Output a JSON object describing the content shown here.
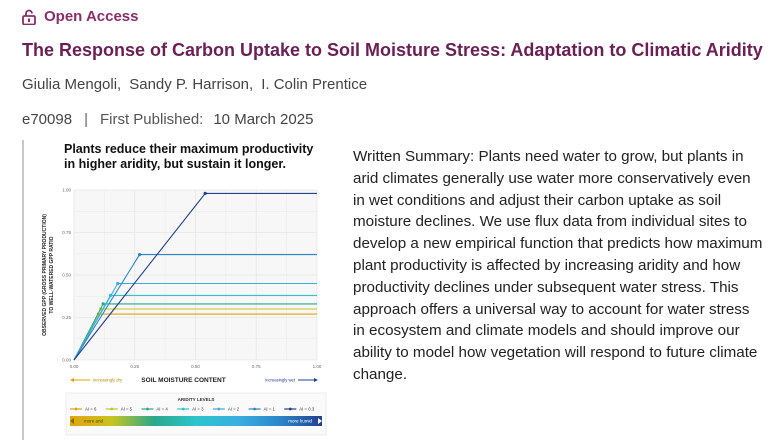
{
  "header": {
    "open_access_label": "Open Access",
    "open_access_icon": "unlock-icon",
    "title": "The Response of Carbon Uptake to Soil Moisture Stress: Adaptation to Climatic Aridity",
    "authors": [
      "Giulia Mengoli",
      "Sandy P. Harrison",
      "I. Colin Prentice"
    ],
    "article_id": "e70098",
    "first_published_label": "First Published:",
    "first_published_date": "10 March 2025"
  },
  "summary": {
    "text": "Written Summary: Plants need water to grow, but plants in arid climates generally use water more conservatively even in wet conditions and adjust their carbon uptake as soil moisture declines. We use flux data from individual sites to develop a new empirical function that predicts how maximum plant productivity is affected by increasing aridity and how productivity declines under subsequent water stress. This approach offers a universal way to account for water stress in ecosystem and climate models and should improve our ability to model how vegetation will respond to future climate change."
  },
  "colors": {
    "title": "#6b1f55",
    "open_access": "#8a2e6a"
  },
  "chart_data": {
    "type": "line",
    "title": "Plants reduce their maximum productivity in higher aridity, but sustain it longer.",
    "xlabel": "SOIL MOISTURE CONTENT",
    "ylabel": "OBSERVED GPP (GROSS PRIMARY PRODUCTION) TO WELL-WATERED GPP RATIO",
    "xlim": [
      0,
      1
    ],
    "ylim": [
      0,
      1
    ],
    "x_ticks": [
      "0.00",
      "0.25",
      "0.50",
      "0.75",
      "1.00"
    ],
    "y_ticks": [
      "0.00",
      "0.25",
      "0.50",
      "0.75",
      "1.00"
    ],
    "grid": true,
    "x_annotations": {
      "left": "increasingly dry",
      "right": "increasingly wet"
    },
    "legend": {
      "title": "ARIDITY LEVELS",
      "placement": "bottom",
      "gradient_left": "more arid",
      "gradient_right": "more humid"
    },
    "series": [
      {
        "name": "AI = 6",
        "color": "#e0a40f",
        "x": [
          0,
          0.1,
          1.0
        ],
        "y": [
          0,
          0.27,
          0.27
        ]
      },
      {
        "name": "AI = 5",
        "color": "#c7c41f",
        "x": [
          0,
          0.11,
          1.0
        ],
        "y": [
          0,
          0.3,
          0.3
        ]
      },
      {
        "name": "AI = 4",
        "color": "#2aa88c",
        "x": [
          0,
          0.12,
          1.0
        ],
        "y": [
          0,
          0.33,
          0.33
        ]
      },
      {
        "name": "AI = 3",
        "color": "#2ec4cc",
        "x": [
          0,
          0.15,
          1.0
        ],
        "y": [
          0,
          0.38,
          0.38
        ]
      },
      {
        "name": "AI = 2",
        "color": "#3aaee0",
        "x": [
          0,
          0.18,
          1.0
        ],
        "y": [
          0,
          0.45,
          0.45
        ]
      },
      {
        "name": "AI = 1",
        "color": "#2b86c9",
        "x": [
          0,
          0.27,
          1.0
        ],
        "y": [
          0,
          0.62,
          0.62
        ]
      },
      {
        "name": "AI = 0.3",
        "color": "#23408e",
        "x": [
          0,
          0.54,
          1.0
        ],
        "y": [
          0,
          0.98,
          0.98
        ]
      }
    ]
  }
}
